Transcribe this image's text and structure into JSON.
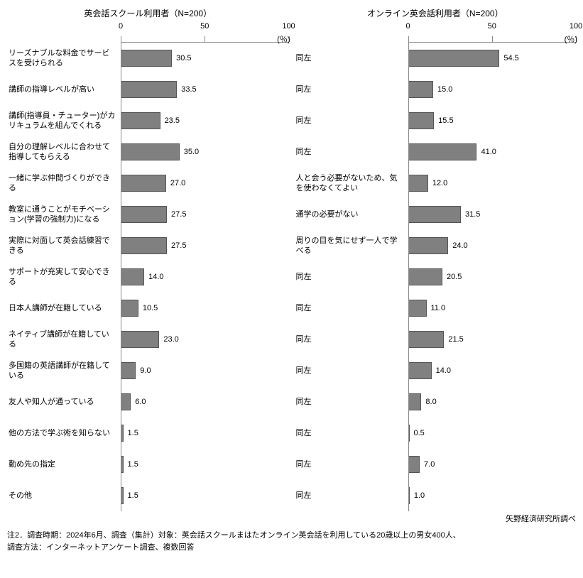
{
  "left": {
    "title": "英会話スクール利用者（N=200）",
    "unit": "(％)",
    "xmax": 100,
    "ticks": [
      0,
      50,
      100
    ],
    "bar_color": "#808080",
    "rows": [
      {
        "label": "リーズナブルな料金でサービスを受けられる",
        "value": 30.5,
        "text": "30.5"
      },
      {
        "label": "講師の指導レベルが高い",
        "value": 33.5,
        "text": "33.5"
      },
      {
        "label": "講師(指導員・チューター)がカリキュラムを組んでくれる",
        "value": 23.5,
        "text": "23.5"
      },
      {
        "label": "自分の理解レベルに合わせて指導してもらえる",
        "value": 35.0,
        "text": "35.0"
      },
      {
        "label": "一緒に学ぶ仲間づくりができる",
        "value": 27.0,
        "text": "27.0"
      },
      {
        "label": "教室に通うことがモチベーション(学習の強制力)になる",
        "value": 27.5,
        "text": "27.5"
      },
      {
        "label": "実際に対面して英会話練習できる",
        "value": 27.5,
        "text": "27.5"
      },
      {
        "label": "サポートが充実して安心できる",
        "value": 14.0,
        "text": "14.0"
      },
      {
        "label": "日本人講師が在籍している",
        "value": 10.5,
        "text": "10.5"
      },
      {
        "label": "ネイティブ講師が在籍している",
        "value": 23.0,
        "text": "23.0"
      },
      {
        "label": "多国籍の英語講師が在籍している",
        "value": 9.0,
        "text": "9.0"
      },
      {
        "label": "友人や知人が通っている",
        "value": 6.0,
        "text": "6.0"
      },
      {
        "label": "他の方法で学ぶ術を知らない",
        "value": 1.5,
        "text": "1.5"
      },
      {
        "label": "勤め先の指定",
        "value": 1.5,
        "text": "1.5"
      },
      {
        "label": "その他",
        "value": 1.5,
        "text": "1.5"
      }
    ]
  },
  "right": {
    "title": "オンライン英会話利用者（N=200）",
    "unit": "(％)",
    "xmax": 100,
    "ticks": [
      0,
      50,
      100
    ],
    "bar_color": "#808080",
    "rows": [
      {
        "label": "同左",
        "value": 54.5,
        "text": "54.5"
      },
      {
        "label": "同左",
        "value": 15.0,
        "text": "15.0"
      },
      {
        "label": "同左",
        "value": 15.5,
        "text": "15.5"
      },
      {
        "label": "同左",
        "value": 41.0,
        "text": "41.0"
      },
      {
        "label": "人と会う必要がないため、気を使わなくてよい",
        "value": 12.0,
        "text": "12.0"
      },
      {
        "label": "通学の必要がない",
        "value": 31.5,
        "text": "31.5"
      },
      {
        "label": "周りの目を気にせず一人で学べる",
        "value": 24.0,
        "text": "24.0"
      },
      {
        "label": "同左",
        "value": 20.5,
        "text": "20.5"
      },
      {
        "label": "同左",
        "value": 11.0,
        "text": "11.0"
      },
      {
        "label": "同左",
        "value": 21.5,
        "text": "21.5"
      },
      {
        "label": "同左",
        "value": 14.0,
        "text": "14.0"
      },
      {
        "label": "同左",
        "value": 8.0,
        "text": "8.0"
      },
      {
        "label": "同左",
        "value": 0.5,
        "text": "0.5"
      },
      {
        "label": "同左",
        "value": 7.0,
        "text": "7.0"
      },
      {
        "label": "同左",
        "value": 1.0,
        "text": "1.0"
      }
    ]
  },
  "attribution": "矢野経済研究所調べ",
  "footer": "注2．調査時期：2024年6月、調査（集計）対象：英会話スクールまはたオンライン英会話を利用している20歳以上の男女400人、\n調査方法：インターネットアンケート調査、複数回答"
}
